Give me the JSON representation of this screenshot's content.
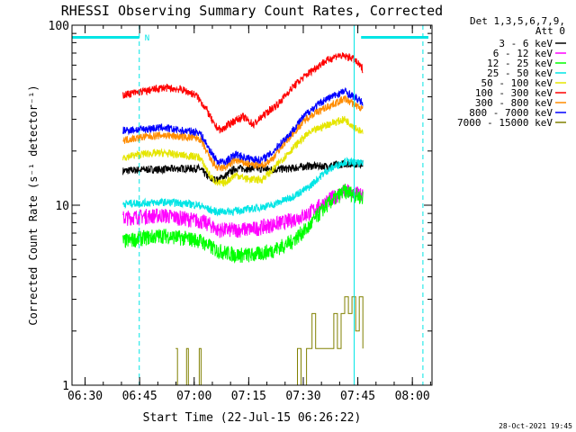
{
  "chart_data": {
    "type": "line",
    "title": "RHESSI Observing Summary Count Rates, Corrected",
    "xlabel": "Start Time (22-Jul-15 06:26:22)",
    "ylabel": "Corrected Count Rate (s⁻¹ detector⁻¹)",
    "y_scale": "log",
    "ylim": [
      1,
      100
    ],
    "y_ticks": [
      {
        "value": 1,
        "label": "1"
      },
      {
        "value": 10,
        "label": "10"
      },
      {
        "value": 100,
        "label": "100"
      }
    ],
    "x_unit": "minutes after 06:26:22",
    "xlim": [
      0,
      99
    ],
    "x_ticks": [
      {
        "value": 3.6,
        "label": "06:30"
      },
      {
        "value": 18.6,
        "label": "06:45"
      },
      {
        "value": 33.6,
        "label": "07:00"
      },
      {
        "value": 48.6,
        "label": "07:15"
      },
      {
        "value": 63.6,
        "label": "07:30"
      },
      {
        "value": 78.6,
        "label": "07:45"
      },
      {
        "value": 93.6,
        "label": "08:00"
      }
    ],
    "detectors": "Det 1,3,5,6,7,9,",
    "attenuator": "Att 0",
    "footer_date": "28-Oct-2021 19:45",
    "night_flag": "N",
    "night_segments": [
      [
        0,
        18.5
      ],
      [
        79.5,
        98
      ]
    ],
    "vertical_markers": [
      {
        "value": 18.5,
        "color": "#00e5e5",
        "style": "dashed"
      },
      {
        "value": 77.6,
        "color": "#00e5e5",
        "style": "solid"
      },
      {
        "value": 96.5,
        "color": "#00e5e5",
        "style": "dashed"
      }
    ],
    "grid": false,
    "legend_position": "right",
    "series": [
      {
        "name": "3 - 6 keV",
        "color": "#000000",
        "x": [
          14,
          20,
          25,
          30,
          35,
          38,
          40,
          42,
          45,
          50,
          55,
          60,
          65,
          70,
          75,
          80
        ],
        "y": [
          15.5,
          15.8,
          15.8,
          16,
          16,
          14,
          13.8,
          14.5,
          16,
          16,
          15.8,
          16,
          16.5,
          16.5,
          17,
          17
        ]
      },
      {
        "name": "6 - 12 keV",
        "color": "#ff00ff",
        "x": [
          14,
          20,
          25,
          30,
          35,
          38,
          40,
          45,
          50,
          55,
          60,
          65,
          70,
          75,
          80
        ],
        "y": [
          8.5,
          8.7,
          8.8,
          8.5,
          8.2,
          7.8,
          7.3,
          7.3,
          7.4,
          7.8,
          8.2,
          9,
          10.5,
          12,
          11.5
        ]
      },
      {
        "name": "12 - 25 keV",
        "color": "#00ff00",
        "x": [
          14,
          20,
          25,
          30,
          35,
          38,
          40,
          45,
          50,
          55,
          60,
          65,
          70,
          75,
          80
        ],
        "y": [
          6.3,
          6.6,
          6.8,
          6.6,
          6.4,
          5.9,
          5.6,
          5.3,
          5.3,
          5.6,
          6.2,
          7.5,
          10,
          12,
          11
        ]
      },
      {
        "name": "25 - 50 keV",
        "color": "#00e5e5",
        "x": [
          14,
          20,
          25,
          30,
          35,
          38,
          40,
          45,
          50,
          55,
          60,
          65,
          70,
          75,
          80
        ],
        "y": [
          10.2,
          10.3,
          10.4,
          10.3,
          10,
          9.4,
          9.2,
          9.3,
          9.6,
          10,
          11,
          12.5,
          15.5,
          17.5,
          17
        ]
      },
      {
        "name": "50 - 100 keV",
        "color": "#e5e500",
        "x": [
          14,
          20,
          25,
          30,
          35,
          38,
          40,
          42,
          45,
          48,
          52,
          55,
          60,
          65,
          70,
          75,
          80
        ],
        "y": [
          18.5,
          19.3,
          19.5,
          19,
          18.5,
          14.5,
          13.2,
          13.3,
          14.8,
          14,
          13.8,
          15.5,
          20,
          25,
          28,
          30,
          25
        ]
      },
      {
        "name": "100 - 300 keV",
        "color": "#ff0000",
        "x": [
          14,
          20,
          25,
          30,
          34,
          37,
          39,
          41,
          44,
          47,
          50,
          53,
          57,
          61,
          65,
          69,
          73,
          77,
          80
        ],
        "y": [
          41,
          43,
          45,
          44,
          41,
          34,
          28,
          26,
          29,
          31,
          28,
          32,
          37,
          46,
          54,
          62,
          68,
          66,
          57
        ]
      },
      {
        "name": "300 - 800 keV",
        "color": "#ff8c00",
        "x": [
          14,
          20,
          25,
          30,
          35,
          38,
          40,
          42,
          45,
          48,
          52,
          55,
          60,
          65,
          70,
          75,
          80
        ],
        "y": [
          23,
          24,
          24.5,
          24,
          23.5,
          18,
          16,
          16.2,
          17.8,
          17,
          16.5,
          18,
          24,
          31,
          35,
          39,
          34
        ]
      },
      {
        "name": "800 - 7000 keV",
        "color": "#0000ff",
        "x": [
          14,
          20,
          25,
          30,
          35,
          38,
          40,
          42,
          45,
          48,
          52,
          55,
          60,
          65,
          70,
          75,
          80
        ],
        "y": [
          26,
          26.5,
          27,
          26,
          25.5,
          20,
          17.5,
          17.3,
          19.2,
          18.3,
          17.8,
          19.5,
          25,
          33,
          39,
          43,
          37
        ]
      },
      {
        "name": "7000 - 15000 keV",
        "color": "#808000",
        "x": [
          28.5,
          29,
          31.5,
          32,
          35,
          35.5,
          62,
          63,
          64.5,
          66,
          67,
          72,
          73,
          74,
          75,
          76,
          77,
          78,
          79,
          80
        ],
        "y": [
          1.6,
          1,
          1.6,
          1,
          1.6,
          1,
          1.6,
          1,
          1.6,
          2.5,
          1.6,
          2.5,
          1.6,
          2.5,
          3.1,
          2.5,
          3.1,
          2,
          3.1,
          1.6
        ]
      }
    ]
  }
}
